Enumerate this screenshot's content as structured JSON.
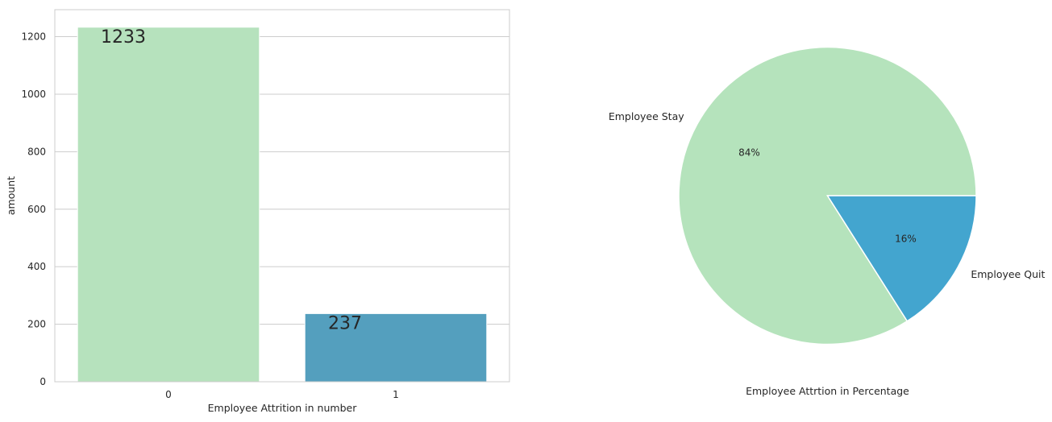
{
  "chart_data": [
    {
      "type": "bar",
      "categories": [
        "0",
        "1"
      ],
      "values": [
        1233,
        237
      ],
      "value_labels": [
        "1233",
        "237"
      ],
      "colors": [
        "#b6e2bd",
        "#549fbe"
      ],
      "title": "",
      "xlabel": "Employee Attrition in number",
      "ylabel": "amount",
      "ylim": [
        0,
        1294
      ],
      "yticks": [
        0,
        200,
        400,
        600,
        800,
        1000,
        1200
      ],
      "grid": true
    },
    {
      "type": "pie",
      "labels": [
        "Employee Stay",
        "Employee Quit"
      ],
      "values": [
        84,
        16
      ],
      "pct_labels": [
        "84%",
        "16%"
      ],
      "colors": [
        "#b5e3bc",
        "#43a5cf"
      ],
      "start_angle": 0,
      "xlabel": "Employee Attrtion in Percentage"
    }
  ]
}
